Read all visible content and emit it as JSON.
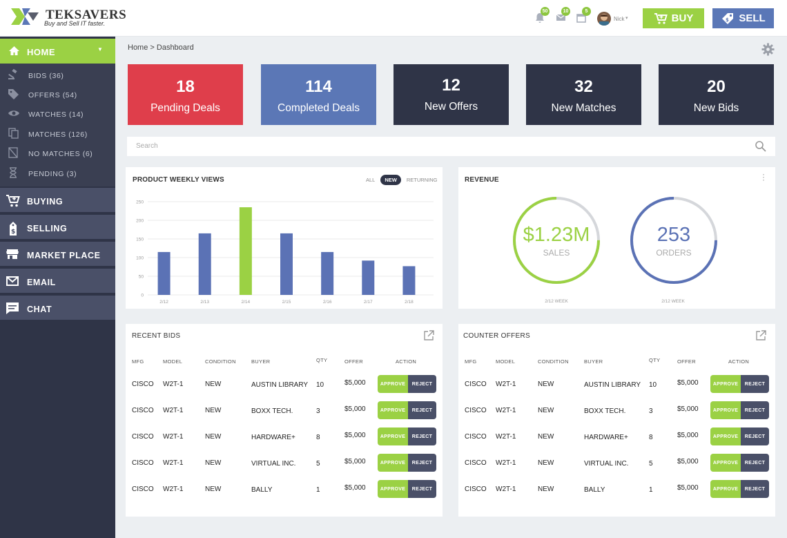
{
  "header": {
    "brand_name": "Teksavers",
    "brand_tagline": "Buy and Sell IT faster.",
    "notif_count": "50",
    "messages_count": "10",
    "calendar_count": "5",
    "user_name": "Nick",
    "buy_label": "BUY",
    "sell_label": "SELL"
  },
  "sidebar": {
    "home_label": "HOME",
    "sub_items": [
      {
        "label": "BIDS (36)",
        "icon": "gavel-icon"
      },
      {
        "label": "OFFERS (54)",
        "icon": "tag-icon"
      },
      {
        "label": "WATCHES (14)",
        "icon": "eye-icon"
      },
      {
        "label": "MATCHES (126)",
        "icon": "copy-icon"
      },
      {
        "label": "NO MATCHES (6)",
        "icon": "no-match-icon"
      },
      {
        "label": "PENDING (3)",
        "icon": "hourglass-icon"
      }
    ],
    "main_items": [
      {
        "label": "BUYING",
        "icon": "cart-icon"
      },
      {
        "label": "SELLING",
        "icon": "price-tag-icon"
      },
      {
        "label": "MARKET PLACE",
        "icon": "store-icon"
      },
      {
        "label": "EMAIL",
        "icon": "mail-icon"
      },
      {
        "label": "CHAT",
        "icon": "chat-icon"
      }
    ]
  },
  "breadcrumb": "Home > Dashboard",
  "stats": [
    {
      "value": "18",
      "label": "Pending Deals",
      "color": "#df3e4b"
    },
    {
      "value": "114",
      "label": "Completed Deals",
      "color": "#5b77b6"
    },
    {
      "value": "12",
      "label": "New Offers",
      "color": "#2f3447"
    },
    {
      "value": "32",
      "label": "New Matches",
      "color": "#2f3447"
    },
    {
      "value": "20",
      "label": "New Bids",
      "color": "#2f3447"
    }
  ],
  "search": {
    "placeholder": "Search"
  },
  "chart_panel": {
    "title": "PRODUCT WEEKLY VIEWS",
    "filters": [
      "ALL",
      "NEW",
      "RETURNING"
    ],
    "selected_filter": "NEW"
  },
  "chart_data": {
    "type": "bar",
    "title": "PRODUCT WEEKLY VIEWS",
    "categories": [
      "2/12",
      "2/13",
      "2/14",
      "2/15",
      "2/16",
      "2/17",
      "2/18"
    ],
    "values": [
      115,
      165,
      235,
      165,
      115,
      92,
      77
    ],
    "highlight_index": 2,
    "yticks": [
      0,
      50,
      100,
      150,
      200,
      250
    ],
    "ylim": [
      0,
      250
    ],
    "grid": true,
    "colors": {
      "bar": "#5b72b5",
      "highlight": "#9bd144"
    }
  },
  "revenue": {
    "title": "REVENUE",
    "sales_value": "$1.23M",
    "sales_label": "SALES",
    "sales_fraction": 0.75,
    "sales_week": "2/12 WEEK",
    "orders_value": "253",
    "orders_label": "ORDERS",
    "orders_fraction": 0.75,
    "orders_week": "2/12 WEEK"
  },
  "table_headers": [
    "MFG",
    "MODEL",
    "CONDITION",
    "BUYER",
    "QTY",
    "OFFER",
    "ACTION"
  ],
  "action_labels": {
    "approve": "APPROVE",
    "reject": "REJECT"
  },
  "recent_bids": {
    "title": "RECENT BIDS",
    "rows": [
      {
        "mfg": "CISCO",
        "model": "W2T-1",
        "condition": "NEW",
        "buyer": "AUSTIN LIBRARY",
        "qty": "10",
        "offer": "$5,000"
      },
      {
        "mfg": "CISCO",
        "model": "W2T-1",
        "condition": "NEW",
        "buyer": "BOXX TECH.",
        "qty": "3",
        "offer": "$5,000"
      },
      {
        "mfg": "CISCO",
        "model": "W2T-1",
        "condition": "NEW",
        "buyer": "HARDWARE+",
        "qty": "8",
        "offer": "$5,000"
      },
      {
        "mfg": "CISCO",
        "model": "W2T-1",
        "condition": "NEW",
        "buyer": "VIRTUAL INC.",
        "qty": "5",
        "offer": "$5,000"
      },
      {
        "mfg": "CISCO",
        "model": "W2T-1",
        "condition": "NEW",
        "buyer": "BALLY",
        "qty": "1",
        "offer": "$5,000"
      }
    ]
  },
  "counter_offers": {
    "title": "COUNTER OFFERS",
    "rows": [
      {
        "mfg": "CISCO",
        "model": "W2T-1",
        "condition": "NEW",
        "buyer": "AUSTIN LIBRARY",
        "qty": "10",
        "offer": "$5,000"
      },
      {
        "mfg": "CISCO",
        "model": "W2T-1",
        "condition": "NEW",
        "buyer": "BOXX TECH.",
        "qty": "3",
        "offer": "$5,000"
      },
      {
        "mfg": "CISCO",
        "model": "W2T-1",
        "condition": "NEW",
        "buyer": "HARDWARE+",
        "qty": "8",
        "offer": "$5,000"
      },
      {
        "mfg": "CISCO",
        "model": "W2T-1",
        "condition": "NEW",
        "buyer": "VIRTUAL INC.",
        "qty": "5",
        "offer": "$5,000"
      },
      {
        "mfg": "CISCO",
        "model": "W2T-1",
        "condition": "NEW",
        "buyer": "BALLY",
        "qty": "1",
        "offer": "$5,000"
      }
    ]
  }
}
